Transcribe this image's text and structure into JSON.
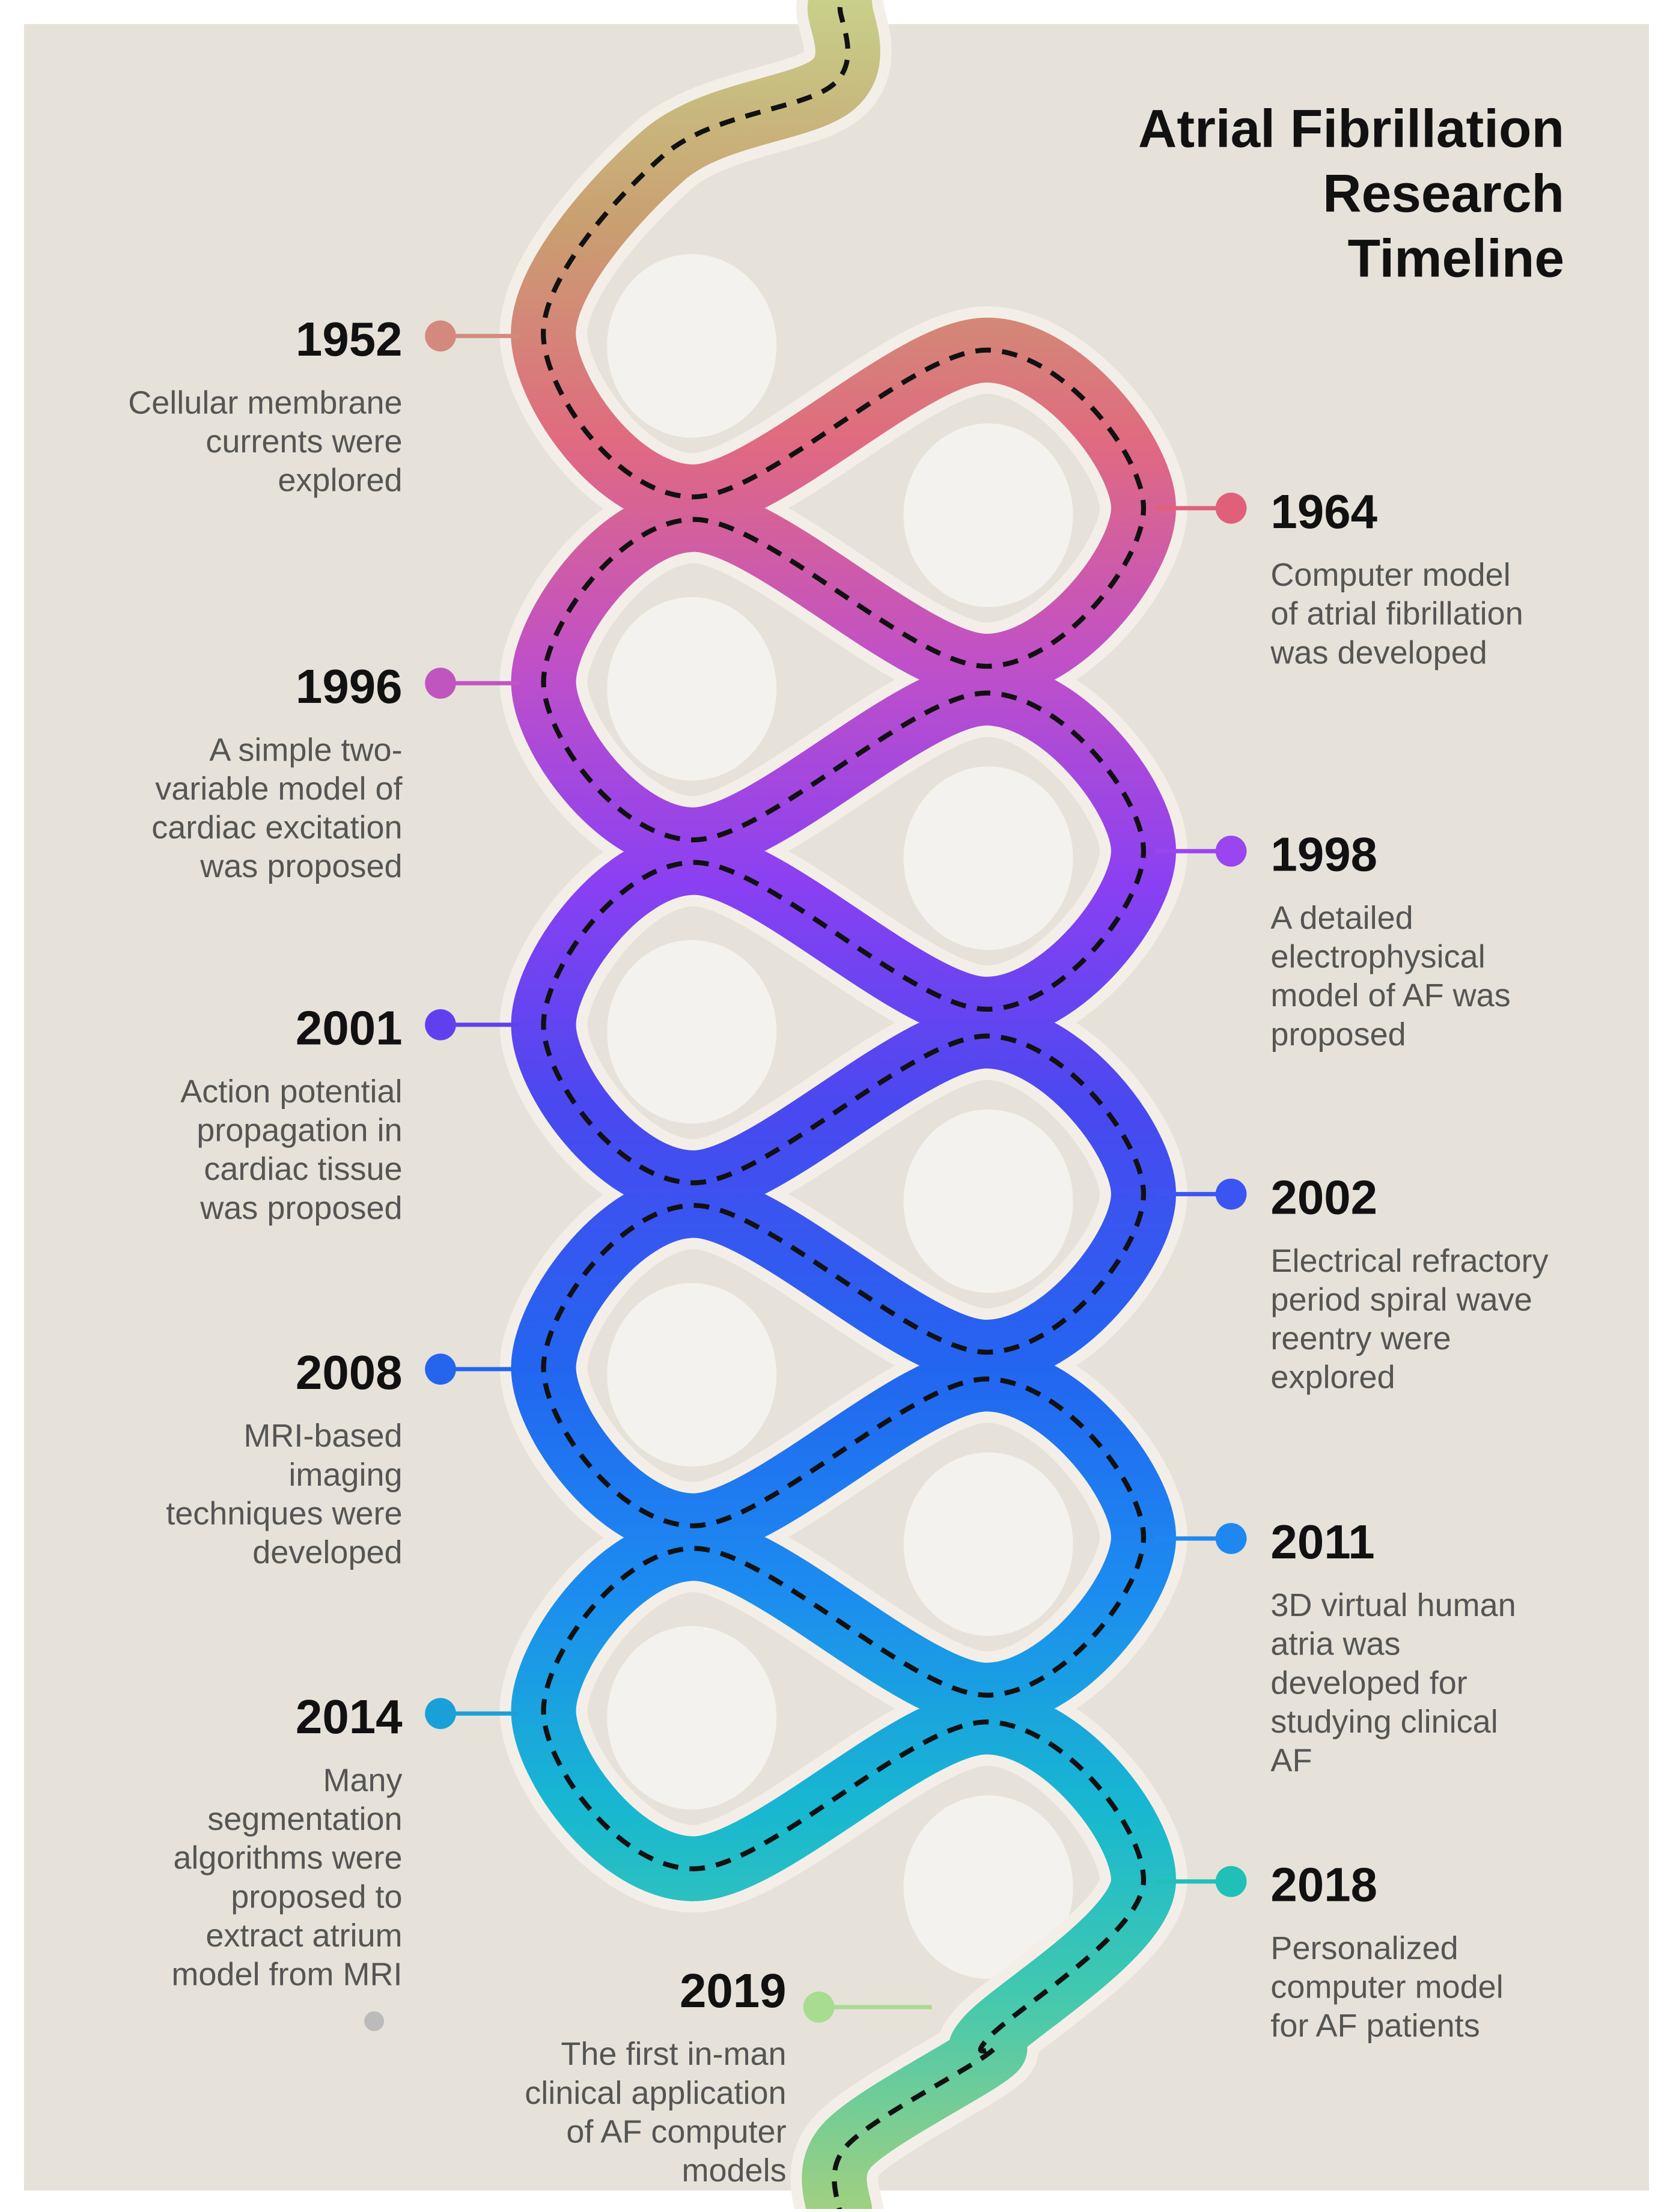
{
  "title": [
    "Atrial Fibrillation",
    "Research",
    "Timeline"
  ],
  "events": [
    {
      "year": "1952",
      "color": "#d4897f",
      "lines": [
        "Cellular membrane",
        "currents were",
        "explored"
      ]
    },
    {
      "year": "1964",
      "color": "#e0607a",
      "lines": [
        "Computer model",
        "of atrial fibrillation",
        "was developed"
      ]
    },
    {
      "year": "1996",
      "color": "#c055c0",
      "lines": [
        "A simple two-",
        "variable model of",
        "cardiac excitation",
        "was proposed"
      ]
    },
    {
      "year": "1998",
      "color": "#9a45f0",
      "lines": [
        "A detailed",
        "electrophysical",
        "model of AF was",
        "proposed"
      ]
    },
    {
      "year": "2001",
      "color": "#6040ee",
      "lines": [
        "Action potential",
        "propagation in",
        "cardiac tissue",
        "was proposed"
      ]
    },
    {
      "year": "2002",
      "color": "#3a55f2",
      "lines": [
        "Electrical refractory",
        "period spiral wave",
        "reentry were",
        "explored"
      ]
    },
    {
      "year": "2008",
      "color": "#2565ee",
      "lines": [
        "MRI-based",
        "imaging",
        "techniques were",
        "developed"
      ]
    },
    {
      "year": "2011",
      "color": "#1e88f0",
      "lines": [
        "3D virtual human",
        "atria was",
        "developed for",
        "studying clinical",
        "AF"
      ]
    },
    {
      "year": "2014",
      "color": "#1aa0d8",
      "lines": [
        "Many",
        "segmentation",
        "algorithms were",
        "proposed to",
        "extract atrium",
        "model from MRI"
      ]
    },
    {
      "year": "2018",
      "color": "#20c0b8",
      "lines": [
        "Personalized",
        "computer model",
        "for AF patients"
      ]
    },
    {
      "year": "2019",
      "color": "#a8dc90",
      "lines": [
        "The first in-man",
        "clinical application",
        "of AF computer",
        "models"
      ]
    }
  ]
}
